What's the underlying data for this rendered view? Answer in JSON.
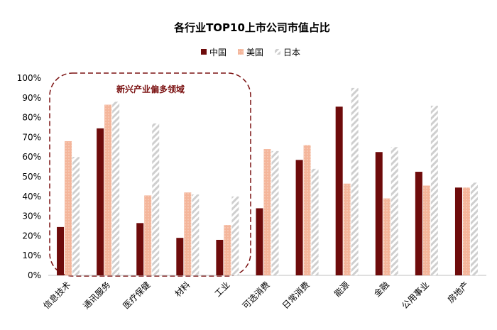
{
  "chart_data": {
    "type": "bar",
    "title": "各行业TOP10上市公司市值占比",
    "categories": [
      "信息技术",
      "通讯服务",
      "医疗保健",
      "材料",
      "工业",
      "可选消费",
      "日常消费",
      "能源",
      "金融",
      "公用事业",
      "房地产"
    ],
    "series": [
      {
        "name": "中国",
        "color": "#6e0b0b",
        "values": [
          24.5,
          74.5,
          26.5,
          19.0,
          18.0,
          34.0,
          58.5,
          85.5,
          62.5,
          52.5,
          44.5
        ]
      },
      {
        "name": "美国",
        "color": "#f4b59a",
        "values": [
          68.0,
          86.5,
          40.5,
          42.0,
          25.5,
          64.0,
          66.0,
          46.5,
          39.0,
          45.5,
          44.5
        ]
      },
      {
        "name": "日本",
        "color": "#cfcfcf",
        "values": [
          60.0,
          88.0,
          77.0,
          41.0,
          40.0,
          63.0,
          54.0,
          95.0,
          65.0,
          86.0,
          47.0
        ]
      }
    ],
    "ylim": [
      0,
      100
    ],
    "ytick_labels": [
      "0%",
      "10%",
      "20%",
      "30%",
      "40%",
      "50%",
      "60%",
      "70%",
      "80%",
      "90%",
      "100%"
    ],
    "legend_position": "top-center",
    "grid": false,
    "annotation": "新兴产业偏多领域"
  }
}
